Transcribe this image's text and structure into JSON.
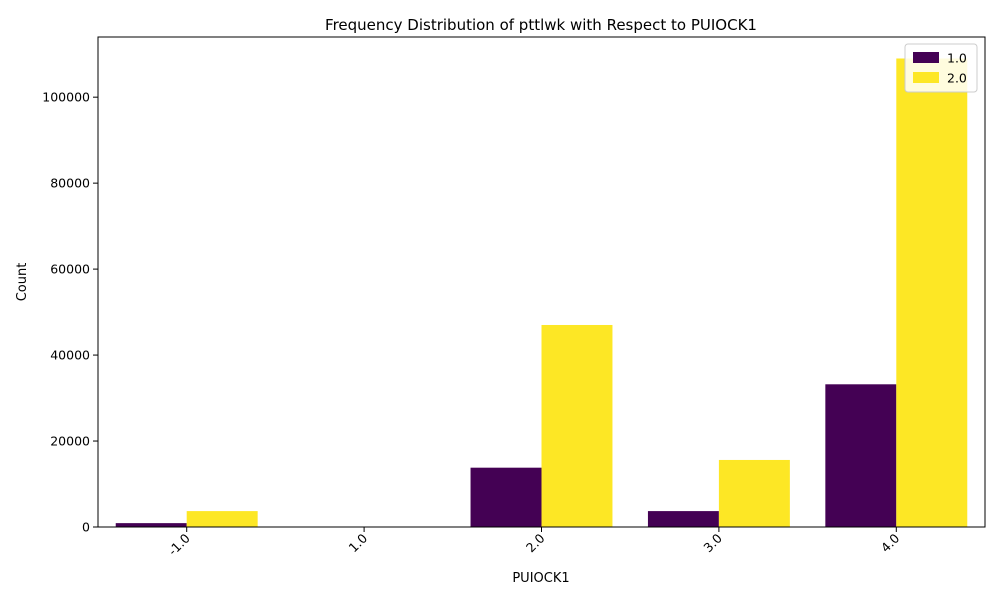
{
  "chart_data": {
    "type": "bar",
    "title": "Frequency Distribution of pttlwk with Respect to PUIOCK1",
    "xlabel": "PUIOCK1",
    "ylabel": "Count",
    "categories": [
      "-1.0",
      "1.0",
      "2.0",
      "3.0",
      "4.0"
    ],
    "series": [
      {
        "name": "1.0",
        "color": "#440154",
        "values": [
          900,
          0,
          13800,
          3700,
          33200
        ]
      },
      {
        "name": "2.0",
        "color": "#fde725",
        "values": [
          3700,
          0,
          47000,
          15600,
          109000
        ]
      }
    ],
    "ylim": [
      0,
      114000
    ],
    "yticks": [
      0,
      20000,
      40000,
      60000,
      80000,
      100000
    ],
    "grid": false,
    "legend_position": "top-right"
  }
}
